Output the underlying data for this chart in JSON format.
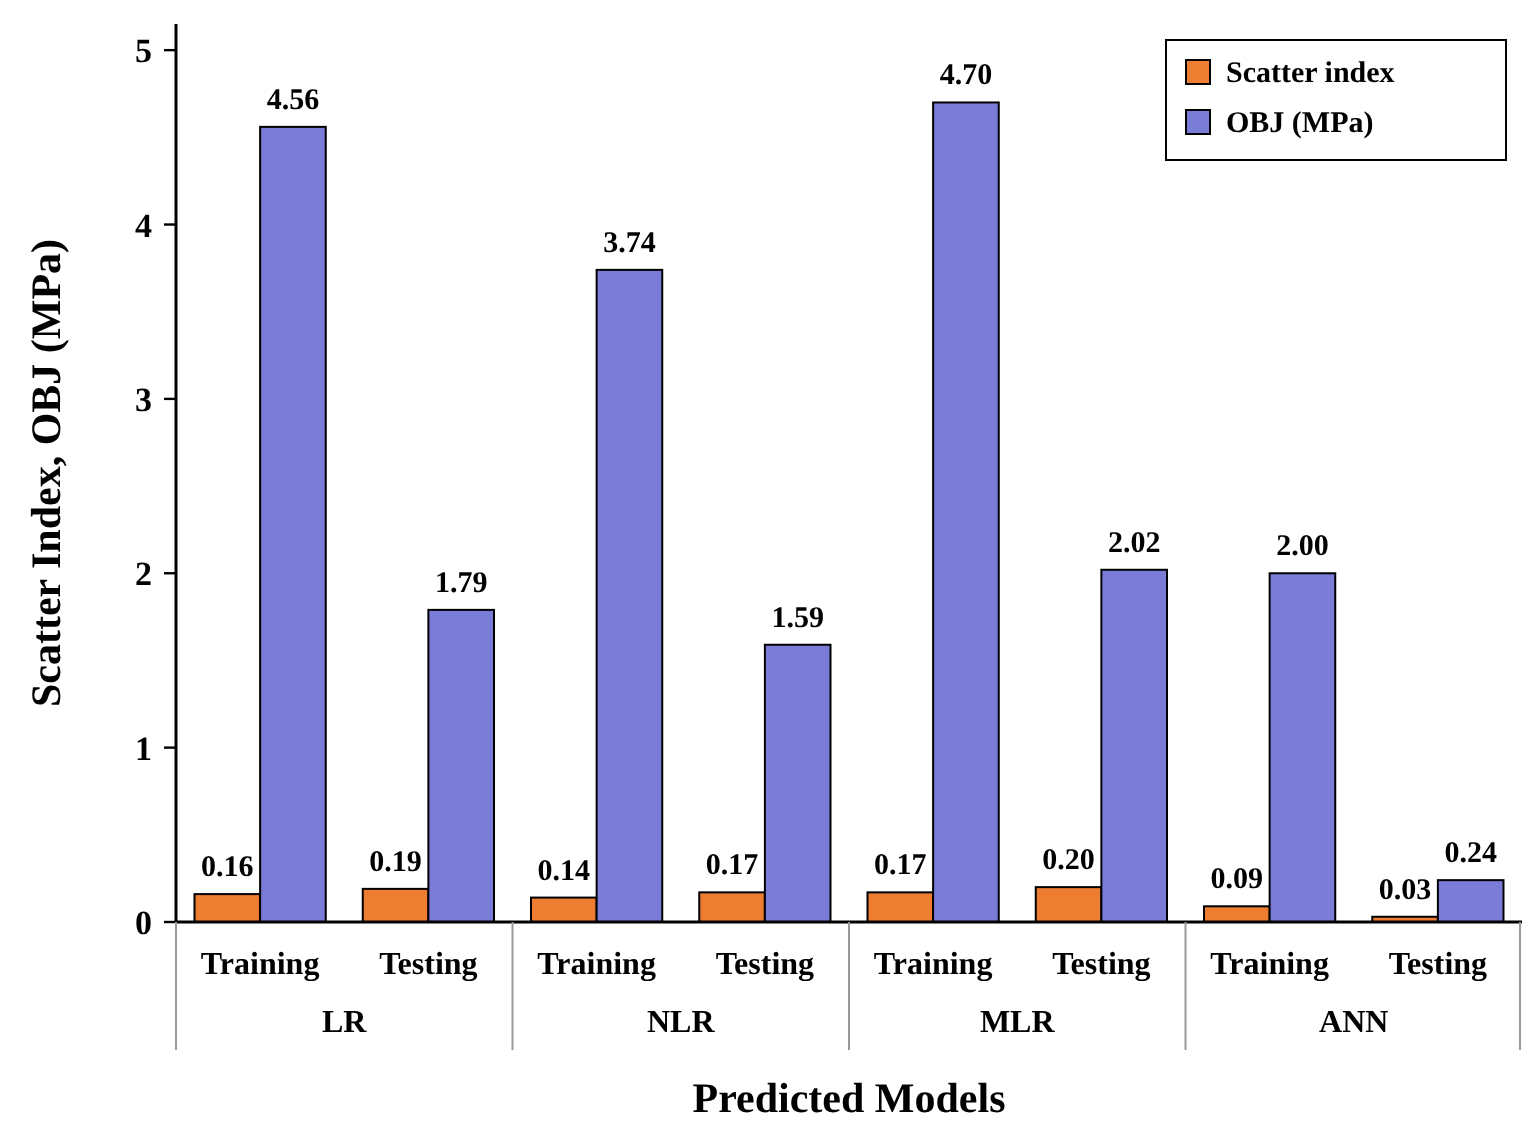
{
  "chart_data": {
    "type": "bar",
    "xlabel": "Predicted Models",
    "ylabel": "Scatter Index, OBJ (MPa)",
    "categories": [
      "Training",
      "Testing",
      "Training",
      "Testing",
      "Training",
      "Testing",
      "Training",
      "Testing"
    ],
    "annotations": [
      "LR",
      "NLR",
      "MLR",
      "ANN"
    ],
    "series": [
      {
        "name": "Scatter index",
        "color": "#ed7d31",
        "values": [
          0.16,
          0.19,
          0.14,
          0.17,
          0.17,
          0.2,
          0.09,
          0.03
        ],
        "value_labels": [
          "0.16",
          "0.19",
          "0.14",
          "0.17",
          "0.17",
          "0.20",
          "0.09",
          "0.03"
        ]
      },
      {
        "name": "OBJ (MPa)",
        "color": "#7b7bd8",
        "values": [
          4.56,
          1.79,
          3.74,
          1.59,
          4.7,
          2.02,
          2.0,
          0.24
        ],
        "value_labels": [
          "4.56",
          "1.79",
          "3.74",
          "1.59",
          "4.70",
          "2.02",
          "2.00",
          "0.24"
        ]
      }
    ],
    "ylim": [
      0,
      5.15
    ],
    "yticks": [
      0,
      1,
      2,
      3,
      4,
      5
    ],
    "legend": "top right"
  }
}
